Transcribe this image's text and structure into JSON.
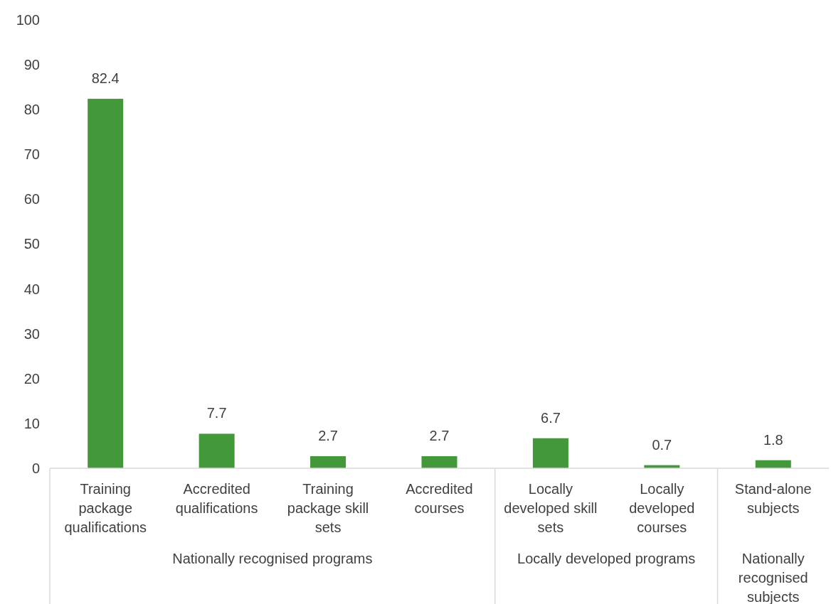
{
  "chart_data": {
    "type": "bar",
    "categories": [
      "Training package qualifications",
      "Accredited qualifications",
      "Training package skill sets",
      "Accredited courses",
      "Locally developed skill sets",
      "Locally developed courses",
      "Stand-alone subjects"
    ],
    "values": [
      82.4,
      7.7,
      2.7,
      2.7,
      6.7,
      0.7,
      1.8
    ],
    "color": "#43983a",
    "ylim": [
      0,
      100
    ],
    "yticks": [
      0,
      10,
      20,
      30,
      40,
      50,
      60,
      70,
      80,
      90,
      100
    ],
    "data_labels": true,
    "annotations": [
      "Nationally recognised programs",
      "Locally developed programs",
      "Nationally recognised subjects"
    ]
  }
}
